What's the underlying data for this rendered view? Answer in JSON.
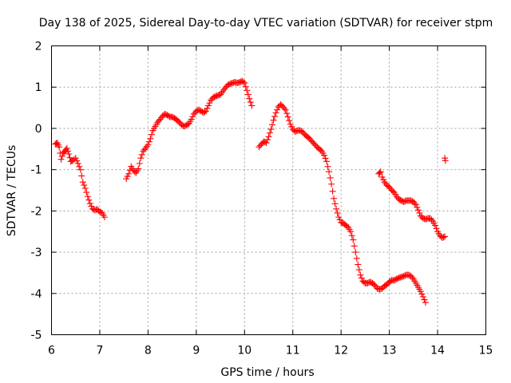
{
  "chart_data": {
    "type": "scatter",
    "title": "Day 138 of 2025, Sidereal Day-to-day VTEC variation (SDTVAR) for receiver stpm",
    "xlabel": "GPS time / hours",
    "ylabel": "SDTVAR / TECUs",
    "xlim": [
      6,
      15
    ],
    "ylim": [
      -5,
      2
    ],
    "xticks": [
      "6",
      "7",
      "8",
      "9",
      "10",
      "11",
      "12",
      "13",
      "14",
      "15"
    ],
    "yticks": [
      "2",
      "1",
      "0",
      "-1",
      "-2",
      "-3",
      "-4",
      "-5"
    ],
    "grid": true,
    "marker": "plus",
    "point_spacing_hours": 0.025,
    "series": [
      {
        "name": "SDTVAR",
        "color": "#ff0000",
        "segments": [
          [
            [
              6.08,
              -0.38
            ],
            [
              6.12,
              -0.35
            ],
            [
              6.16,
              -0.45
            ],
            [
              6.2,
              -0.75
            ],
            [
              6.24,
              -0.6
            ],
            [
              6.28,
              -0.55
            ],
            [
              6.32,
              -0.48
            ],
            [
              6.36,
              -0.62
            ],
            [
              6.4,
              -0.8
            ],
            [
              6.44,
              -0.78
            ],
            [
              6.5,
              -0.72
            ],
            [
              6.55,
              -0.85
            ],
            [
              6.6,
              -1.0
            ],
            [
              6.65,
              -1.3
            ],
            [
              6.7,
              -1.45
            ],
            [
              6.75,
              -1.65
            ],
            [
              6.8,
              -1.82
            ],
            [
              6.85,
              -1.95
            ],
            [
              6.9,
              -1.98
            ],
            [
              6.95,
              -1.96
            ],
            [
              7.0,
              -2.02
            ],
            [
              7.05,
              -2.05
            ],
            [
              7.1,
              -2.15
            ]
          ],
          [
            [
              7.55,
              -1.22
            ],
            [
              7.6,
              -1.1
            ],
            [
              7.65,
              -0.92
            ],
            [
              7.7,
              -1.02
            ],
            [
              7.75,
              -1.08
            ],
            [
              7.8,
              -0.98
            ],
            [
              7.85,
              -0.72
            ],
            [
              7.9,
              -0.55
            ],
            [
              7.95,
              -0.48
            ],
            [
              8.0,
              -0.4
            ],
            [
              8.05,
              -0.25
            ],
            [
              8.1,
              -0.05
            ],
            [
              8.15,
              0.05
            ],
            [
              8.2,
              0.15
            ],
            [
              8.25,
              0.22
            ],
            [
              8.3,
              0.3
            ],
            [
              8.35,
              0.35
            ],
            [
              8.4,
              0.32
            ],
            [
              8.45,
              0.28
            ],
            [
              8.5,
              0.28
            ],
            [
              8.55,
              0.25
            ],
            [
              8.6,
              0.2
            ],
            [
              8.65,
              0.15
            ],
            [
              8.7,
              0.08
            ],
            [
              8.75,
              0.05
            ],
            [
              8.8,
              0.08
            ],
            [
              8.85,
              0.12
            ],
            [
              8.9,
              0.22
            ],
            [
              8.95,
              0.35
            ],
            [
              9.0,
              0.42
            ],
            [
              9.05,
              0.45
            ],
            [
              9.1,
              0.42
            ],
            [
              9.15,
              0.38
            ],
            [
              9.2,
              0.42
            ],
            [
              9.25,
              0.55
            ],
            [
              9.3,
              0.68
            ],
            [
              9.35,
              0.75
            ],
            [
              9.4,
              0.78
            ],
            [
              9.45,
              0.8
            ],
            [
              9.5,
              0.82
            ],
            [
              9.55,
              0.9
            ],
            [
              9.6,
              0.98
            ],
            [
              9.65,
              1.05
            ],
            [
              9.7,
              1.08
            ],
            [
              9.75,
              1.1
            ],
            [
              9.8,
              1.12
            ],
            [
              9.85,
              1.1
            ],
            [
              9.9,
              1.12
            ],
            [
              9.95,
              1.15
            ],
            [
              10.0,
              1.1
            ],
            [
              10.05,
              0.92
            ],
            [
              10.1,
              0.72
            ],
            [
              10.15,
              0.55
            ]
          ],
          [
            [
              10.3,
              -0.45
            ],
            [
              10.35,
              -0.38
            ],
            [
              10.4,
              -0.32
            ],
            [
              10.45,
              -0.35
            ],
            [
              10.5,
              -0.2
            ],
            [
              10.55,
              -0.02
            ],
            [
              10.6,
              0.2
            ],
            [
              10.65,
              0.38
            ],
            [
              10.7,
              0.52
            ],
            [
              10.75,
              0.58
            ],
            [
              10.8,
              0.52
            ],
            [
              10.85,
              0.45
            ],
            [
              10.9,
              0.28
            ],
            [
              10.95,
              0.1
            ],
            [
              11.0,
              -0.02
            ],
            [
              11.05,
              -0.08
            ],
            [
              11.1,
              -0.05
            ],
            [
              11.15,
              -0.05
            ],
            [
              11.2,
              -0.08
            ],
            [
              11.25,
              -0.15
            ],
            [
              11.3,
              -0.2
            ],
            [
              11.35,
              -0.25
            ],
            [
              11.4,
              -0.32
            ],
            [
              11.45,
              -0.38
            ],
            [
              11.5,
              -0.45
            ],
            [
              11.55,
              -0.5
            ],
            [
              11.6,
              -0.55
            ],
            [
              11.65,
              -0.65
            ],
            [
              11.7,
              -0.8
            ],
            [
              11.75,
              -1.05
            ],
            [
              11.8,
              -1.35
            ],
            [
              11.85,
              -1.7
            ],
            [
              11.9,
              -1.95
            ],
            [
              11.95,
              -2.15
            ],
            [
              12.0,
              -2.28
            ],
            [
              12.05,
              -2.3
            ],
            [
              12.1,
              -2.35
            ],
            [
              12.15,
              -2.4
            ],
            [
              12.2,
              -2.5
            ],
            [
              12.25,
              -2.7
            ],
            [
              12.3,
              -3.0
            ],
            [
              12.35,
              -3.3
            ],
            [
              12.4,
              -3.55
            ],
            [
              12.45,
              -3.7
            ],
            [
              12.5,
              -3.75
            ],
            [
              12.55,
              -3.75
            ],
            [
              12.6,
              -3.72
            ],
            [
              12.65,
              -3.75
            ],
            [
              12.7,
              -3.8
            ],
            [
              12.75,
              -3.88
            ],
            [
              12.8,
              -3.9
            ],
            [
              12.85,
              -3.88
            ],
            [
              12.9,
              -3.82
            ],
            [
              12.95,
              -3.78
            ],
            [
              13.0,
              -3.72
            ],
            [
              13.05,
              -3.68
            ],
            [
              13.1,
              -3.68
            ],
            [
              13.15,
              -3.65
            ],
            [
              13.2,
              -3.62
            ],
            [
              13.25,
              -3.6
            ],
            [
              13.3,
              -3.58
            ],
            [
              13.35,
              -3.55
            ],
            [
              13.4,
              -3.55
            ],
            [
              13.45,
              -3.58
            ],
            [
              13.5,
              -3.65
            ],
            [
              13.55,
              -3.75
            ],
            [
              13.6,
              -3.85
            ],
            [
              13.65,
              -3.95
            ],
            [
              13.7,
              -4.08
            ],
            [
              13.75,
              -4.22
            ]
          ],
          [
            [
              12.78,
              -1.1
            ],
            [
              12.82,
              -1.05
            ],
            [
              12.85,
              -1.18
            ],
            [
              12.9,
              -1.3
            ],
            [
              12.95,
              -1.38
            ],
            [
              13.0,
              -1.42
            ],
            [
              13.05,
              -1.5
            ],
            [
              13.1,
              -1.55
            ],
            [
              13.15,
              -1.65
            ],
            [
              13.2,
              -1.72
            ],
            [
              13.25,
              -1.75
            ],
            [
              13.3,
              -1.78
            ],
            [
              13.35,
              -1.75
            ],
            [
              13.4,
              -1.75
            ],
            [
              13.45,
              -1.75
            ],
            [
              13.5,
              -1.78
            ],
            [
              13.55,
              -1.85
            ],
            [
              13.6,
              -1.98
            ],
            [
              13.65,
              -2.12
            ],
            [
              13.7,
              -2.18
            ],
            [
              13.75,
              -2.2
            ],
            [
              13.8,
              -2.18
            ],
            [
              13.85,
              -2.18
            ],
            [
              13.9,
              -2.25
            ],
            [
              13.95,
              -2.35
            ],
            [
              14.0,
              -2.5
            ],
            [
              14.05,
              -2.6
            ],
            [
              14.1,
              -2.65
            ],
            [
              14.15,
              -2.62
            ]
          ],
          [
            [
              14.15,
              -0.72
            ],
            [
              14.16,
              -0.78
            ]
          ]
        ]
      }
    ]
  }
}
